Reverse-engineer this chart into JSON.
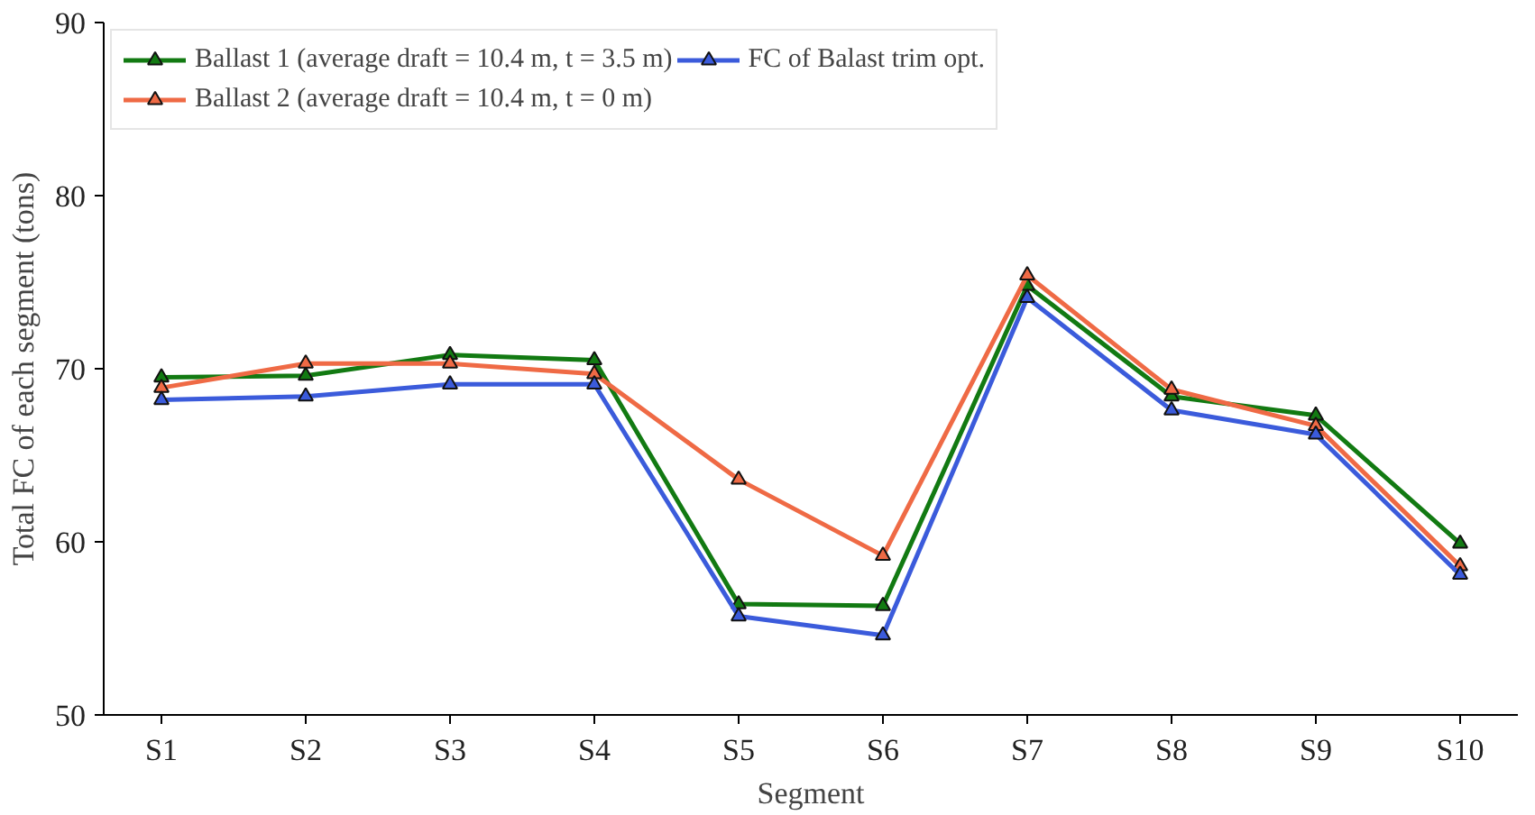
{
  "chart_data": {
    "type": "line",
    "xlabel": "Segment",
    "ylabel": "Total FC of each segment (tons)",
    "categories": [
      "S1",
      "S2",
      "S3",
      "S4",
      "S5",
      "S6",
      "S7",
      "S8",
      "S9",
      "S10"
    ],
    "series": [
      {
        "name": "Ballast 1 (average draft = 10.4 m, t = 3.5 m)",
        "color": "#127a12",
        "values": [
          69.5,
          69.6,
          70.8,
          70.5,
          56.4,
          56.3,
          74.8,
          68.4,
          67.3,
          59.9
        ]
      },
      {
        "name": "Ballast 2 (average draft = 10.4 m, t = 0 m)",
        "color": "#ef6a45",
        "values": [
          68.9,
          70.3,
          70.3,
          69.7,
          63.6,
          59.2,
          75.4,
          68.8,
          66.7,
          58.6
        ]
      },
      {
        "name": "FC of Balast trim opt.",
        "color": "#3b5bdb",
        "values": [
          68.2,
          68.4,
          69.1,
          69.1,
          55.7,
          54.6,
          74.1,
          67.6,
          66.2,
          58.1
        ]
      }
    ],
    "ylim": [
      50,
      90
    ],
    "yticks": [
      50,
      60,
      70,
      80,
      90
    ],
    "grid": false,
    "legend": "top left",
    "marker": "triangle",
    "line_style": "solid"
  }
}
